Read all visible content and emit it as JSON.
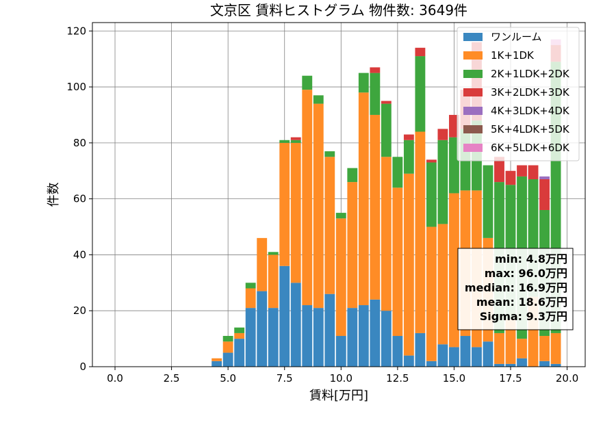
{
  "chart_data": {
    "type": "bar",
    "stacked": true,
    "title": "文京区 賃料ヒストグラム 物件数: 3649件",
    "xlabel": "賃料[万円]",
    "ylabel": "件数",
    "xlim": [
      -1.0,
      20.8
    ],
    "ylim": [
      0,
      123
    ],
    "xticks": [
      "0.0",
      "2.5",
      "5.0",
      "7.5",
      "10.0",
      "12.5",
      "15.0",
      "17.5",
      "20.0"
    ],
    "xtick_values": [
      0,
      2.5,
      5,
      7.5,
      10,
      12.5,
      15,
      17.5,
      20
    ],
    "yticks": [
      0,
      20,
      40,
      60,
      80,
      100,
      120
    ],
    "grid": true,
    "legend_position": "top-right",
    "bin_width": 0.5,
    "x": [
      4.5,
      5.0,
      5.5,
      6.0,
      6.5,
      7.0,
      7.5,
      8.0,
      8.5,
      9.0,
      9.5,
      10.0,
      10.5,
      11.0,
      11.5,
      12.0,
      12.5,
      13.0,
      13.5,
      14.0,
      14.5,
      15.0,
      15.5,
      16.0,
      16.5,
      17.0,
      17.5,
      18.0,
      18.5,
      19.0,
      19.5
    ],
    "series": [
      {
        "name": "ワンルーム",
        "color": "#3a87c0",
        "values": [
          2,
          5,
          10,
          21,
          27,
          21,
          36,
          30,
          22,
          21,
          26,
          11,
          21,
          22,
          24,
          20,
          11,
          4,
          12,
          2,
          8,
          7,
          11,
          7,
          9,
          1,
          1,
          3,
          0,
          2,
          1
        ]
      },
      {
        "name": "1K+1DK",
        "color": "#ff8c26",
        "values": [
          1,
          4,
          2,
          7,
          19,
          19,
          44,
          50,
          77,
          73,
          49,
          42,
          45,
          76,
          66,
          55,
          53,
          65,
          72,
          48,
          43,
          55,
          52,
          56,
          37,
          11,
          16,
          7,
          25,
          9,
          11
        ]
      },
      {
        "name": "2K+1LDK+2DK",
        "color": "#3ea63e",
        "values": [
          0,
          2,
          2,
          2,
          0,
          1,
          1,
          1,
          5,
          3,
          2,
          2,
          5,
          7,
          15,
          19,
          11,
          12,
          27,
          23,
          30,
          20,
          22,
          25,
          26,
          54,
          48,
          58,
          42,
          45,
          97
        ]
      },
      {
        "name": "3K+2LDK+3DK",
        "color": "#d93b3b",
        "values": [
          0,
          0,
          0,
          0,
          0,
          0,
          0,
          1,
          0,
          0,
          0,
          0,
          0,
          0,
          2,
          1,
          0,
          2,
          3,
          1,
          4,
          8,
          14,
          28,
          0,
          9,
          5,
          4,
          5,
          11,
          6
        ]
      },
      {
        "name": "4K+3LDK+4DK",
        "color": "#9b6fc0",
        "values": [
          0,
          0,
          0,
          0,
          0,
          0,
          0,
          0,
          0,
          0,
          0,
          0,
          0,
          0,
          0,
          0,
          0,
          0,
          0,
          0,
          0,
          0,
          0,
          0,
          0,
          0,
          0,
          0,
          0,
          1,
          0
        ]
      },
      {
        "name": "5K+4LDK+5DK",
        "color": "#8c5a4e",
        "values": [
          0,
          0,
          0,
          0,
          0,
          0,
          0,
          0,
          0,
          0,
          0,
          0,
          0,
          0,
          0,
          0,
          0,
          0,
          0,
          0,
          0,
          0,
          0,
          0,
          0,
          0,
          0,
          0,
          0,
          0,
          0
        ]
      },
      {
        "name": "6K+5LDK+6DK",
        "color": "#e683c5",
        "values": [
          0,
          0,
          0,
          0,
          0,
          0,
          0,
          0,
          0,
          0,
          0,
          0,
          0,
          0,
          0,
          0,
          0,
          0,
          0,
          0,
          0,
          0,
          0,
          0,
          0,
          0,
          0,
          0,
          0,
          0,
          2
        ]
      }
    ],
    "stats": [
      "min: 4.8万円",
      "max: 96.0万円",
      "median: 16.9万円",
      "mean: 18.6万円",
      "Sigma: 9.3万円"
    ]
  }
}
